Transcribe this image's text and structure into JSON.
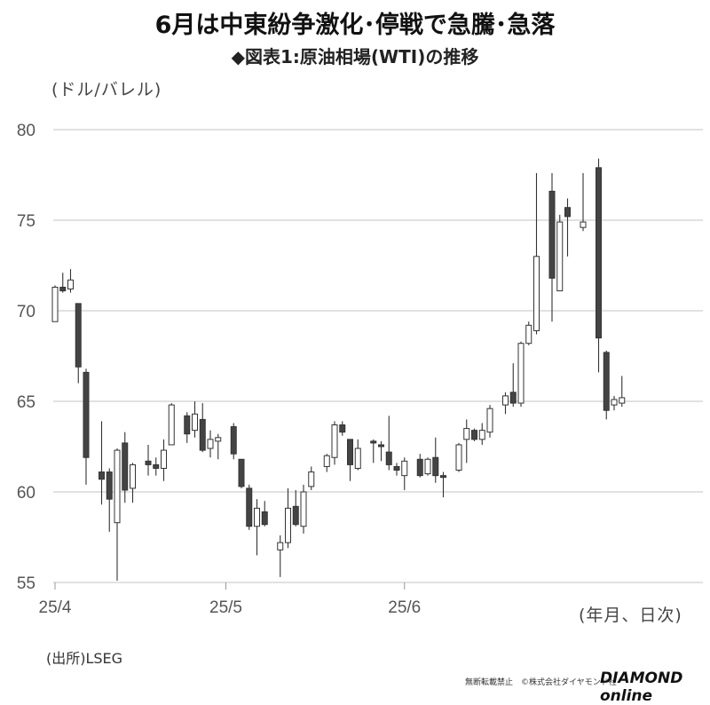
{
  "header": {
    "title": "6月は中東紛争激化･停戦で急騰･急落",
    "subtitle": "◆図表1:原油相場(WTI)の推移",
    "unit_label": "(ドル/バレル)",
    "x_unit_label": "(年月、日次)"
  },
  "footer": {
    "source": "(出所)LSEG",
    "credit": "無断転載禁止　©株式会社ダイヤモンド社",
    "brand": "DIAMOND online"
  },
  "colors": {
    "up": "#ffffff",
    "down": "#444444",
    "wick": "#333333",
    "grid": "#cfcfcf"
  },
  "chart_data": {
    "type": "candlestick",
    "ylim": [
      55,
      80
    ],
    "yticks": [
      55,
      60,
      65,
      70,
      75,
      80
    ],
    "xticks": [
      {
        "label": "25/4",
        "index": 0
      },
      {
        "label": "25/5",
        "index": 22
      },
      {
        "label": "25/6",
        "index": 45
      }
    ],
    "grid": true,
    "candles": [
      {
        "o": 69.4,
        "h": 71.4,
        "l": 69.4,
        "c": 71.3
      },
      {
        "o": 71.3,
        "h": 72.1,
        "l": 71.0,
        "c": 71.1
      },
      {
        "o": 71.2,
        "h": 72.3,
        "l": 71.0,
        "c": 71.7
      },
      {
        "o": 70.4,
        "h": 70.4,
        "l": 66.0,
        "c": 66.9
      },
      {
        "o": 66.6,
        "h": 66.8,
        "l": 60.4,
        "c": 61.9
      },
      {},
      {
        "o": 61.1,
        "h": 63.9,
        "l": 59.3,
        "c": 60.7
      },
      {
        "o": 61.1,
        "h": 61.3,
        "l": 57.8,
        "c": 59.6
      },
      {
        "o": 58.3,
        "h": 62.4,
        "l": 55.1,
        "c": 62.3
      },
      {
        "o": 62.7,
        "h": 63.3,
        "l": 59.4,
        "c": 60.1
      },
      {
        "o": 60.2,
        "h": 61.6,
        "l": 59.4,
        "c": 61.5
      },
      {},
      {
        "o": 61.7,
        "h": 62.6,
        "l": 60.9,
        "c": 61.5
      },
      {
        "o": 61.5,
        "h": 61.9,
        "l": 60.9,
        "c": 61.3
      },
      {
        "o": 61.3,
        "h": 62.9,
        "l": 60.6,
        "c": 62.3
      },
      {
        "o": 62.6,
        "h": 64.9,
        "l": 62.6,
        "c": 64.8
      },
      {},
      {
        "o": 64.2,
        "h": 64.4,
        "l": 62.7,
        "c": 63.2
      },
      {
        "o": 63.4,
        "h": 65.0,
        "l": 63.0,
        "c": 64.3
      },
      {
        "o": 64.0,
        "h": 64.9,
        "l": 62.2,
        "c": 62.3
      },
      {
        "o": 62.4,
        "h": 63.4,
        "l": 61.9,
        "c": 62.9
      },
      {
        "o": 62.8,
        "h": 63.2,
        "l": 61.8,
        "c": 63.0
      },
      {},
      {
        "o": 63.6,
        "h": 63.8,
        "l": 61.8,
        "c": 62.1
      },
      {
        "o": 61.8,
        "h": 61.8,
        "l": 60.2,
        "c": 60.3
      },
      {
        "o": 60.2,
        "h": 60.4,
        "l": 57.9,
        "c": 58.1
      },
      {
        "o": 58.1,
        "h": 59.6,
        "l": 56.5,
        "c": 59.1
      },
      {
        "o": 58.9,
        "h": 59.5,
        "l": 58.1,
        "c": 58.2
      },
      {},
      {
        "o": 56.8,
        "h": 57.6,
        "l": 55.3,
        "c": 57.2
      },
      {
        "o": 57.2,
        "h": 60.2,
        "l": 56.9,
        "c": 59.1
      },
      {
        "o": 59.2,
        "h": 60.1,
        "l": 58.1,
        "c": 58.2
      },
      {
        "o": 58.1,
        "h": 60.4,
        "l": 57.7,
        "c": 60.0
      },
      {
        "o": 60.3,
        "h": 61.4,
        "l": 60.1,
        "c": 61.1
      },
      {},
      {
        "o": 61.4,
        "h": 62.1,
        "l": 61.1,
        "c": 62.0
      },
      {
        "o": 61.9,
        "h": 63.9,
        "l": 61.5,
        "c": 63.7
      },
      {
        "o": 63.7,
        "h": 63.9,
        "l": 63.1,
        "c": 63.3
      },
      {
        "o": 62.9,
        "h": 62.9,
        "l": 60.6,
        "c": 61.5
      },
      {
        "o": 61.3,
        "h": 62.9,
        "l": 61.2,
        "c": 62.4
      },
      {},
      {
        "o": 62.8,
        "h": 62.9,
        "l": 61.6,
        "c": 62.7
      },
      {
        "o": 62.6,
        "h": 62.8,
        "l": 61.7,
        "c": 62.5
      },
      {
        "o": 62.2,
        "h": 64.2,
        "l": 61.2,
        "c": 61.5
      },
      {
        "o": 61.4,
        "h": 61.6,
        "l": 60.9,
        "c": 61.2
      },
      {
        "o": 60.9,
        "h": 61.9,
        "l": 60.1,
        "c": 61.7
      },
      {},
      {
        "o": 61.8,
        "h": 62.1,
        "l": 60.8,
        "c": 60.9
      },
      {
        "o": 61.0,
        "h": 61.9,
        "l": 60.9,
        "c": 61.8
      },
      {
        "o": 61.9,
        "h": 63.0,
        "l": 60.5,
        "c": 60.9
      },
      {
        "o": 60.9,
        "h": 61.1,
        "l": 59.7,
        "c": 60.8
      },
      {},
      {
        "o": 61.2,
        "h": 62.7,
        "l": 61.1,
        "c": 62.6
      },
      {
        "o": 62.9,
        "h": 64.0,
        "l": 61.6,
        "c": 63.5
      },
      {
        "o": 63.4,
        "h": 63.5,
        "l": 62.8,
        "c": 62.9
      },
      {
        "o": 62.9,
        "h": 63.8,
        "l": 62.6,
        "c": 63.4
      },
      {
        "o": 63.3,
        "h": 64.8,
        "l": 63.0,
        "c": 64.6
      },
      {},
      {
        "o": 64.8,
        "h": 65.5,
        "l": 64.3,
        "c": 65.3
      },
      {
        "o": 65.5,
        "h": 67.1,
        "l": 64.7,
        "c": 64.9
      },
      {
        "o": 64.9,
        "h": 68.3,
        "l": 64.7,
        "c": 68.2
      },
      {
        "o": 68.2,
        "h": 69.4,
        "l": 68.1,
        "c": 69.2
      },
      {
        "o": 68.9,
        "h": 77.6,
        "l": 68.7,
        "c": 73.0
      },
      {},
      {
        "o": 76.6,
        "h": 77.6,
        "l": 69.4,
        "c": 71.8
      },
      {
        "o": 71.1,
        "h": 75.3,
        "l": 71.1,
        "c": 74.9
      },
      {
        "o": 75.7,
        "h": 76.2,
        "l": 73.0,
        "c": 75.2
      },
      {},
      {
        "o": 74.6,
        "h": 77.6,
        "l": 74.4,
        "c": 74.9
      },
      {},
      {
        "o": 77.9,
        "h": 78.4,
        "l": 66.6,
        "c": 68.5
      },
      {
        "o": 67.7,
        "h": 67.8,
        "l": 64.0,
        "c": 64.5
      },
      {
        "o": 64.8,
        "h": 65.3,
        "l": 64.5,
        "c": 65.1
      },
      {
        "o": 64.9,
        "h": 66.4,
        "l": 64.7,
        "c": 65.2
      }
    ]
  }
}
